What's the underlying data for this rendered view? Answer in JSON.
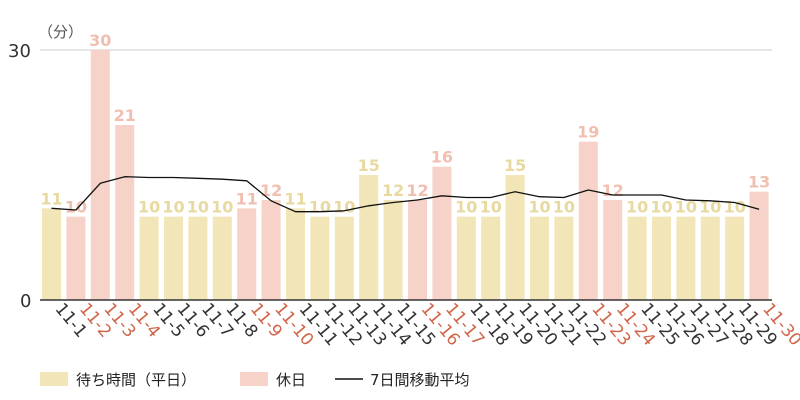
{
  "chart_data": {
    "type": "bar",
    "unit_label": "（分）",
    "y_ticks": [
      "0",
      "30"
    ],
    "ylim": [
      0,
      30
    ],
    "categories": [
      "11-1",
      "11-2",
      "11-3",
      "11-4",
      "11-5",
      "11-6",
      "11-7",
      "11-8",
      "11-9",
      "11-10",
      "11-11",
      "11-12",
      "11-13",
      "11-14",
      "11-15",
      "11-16",
      "11-17",
      "11-18",
      "11-19",
      "11-20",
      "11-21",
      "11-22",
      "11-23",
      "11-24",
      "11-25",
      "11-26",
      "11-27",
      "11-28",
      "11-29",
      "11-30"
    ],
    "values": [
      11,
      10,
      30,
      21,
      10,
      10,
      10,
      10,
      11,
      12,
      11,
      10,
      10,
      15,
      12,
      12,
      16,
      10,
      10,
      15,
      10,
      10,
      19,
      12,
      10,
      10,
      10,
      10,
      10,
      13
    ],
    "holiday": [
      false,
      true,
      true,
      true,
      false,
      false,
      false,
      false,
      true,
      true,
      false,
      false,
      false,
      false,
      false,
      true,
      true,
      false,
      false,
      false,
      false,
      false,
      true,
      true,
      false,
      false,
      false,
      false,
      false,
      true
    ],
    "moving_average": [
      11.0,
      10.8,
      14.0,
      14.8,
      14.7,
      14.7,
      14.6,
      14.5,
      14.3,
      11.9,
      10.6,
      10.6,
      10.7,
      11.3,
      11.7,
      12.0,
      12.5,
      12.3,
      12.3,
      13.0,
      12.4,
      12.3,
      13.2,
      12.6,
      12.6,
      12.6,
      12.0,
      11.9,
      11.7,
      10.9
    ],
    "legend": [
      {
        "label": "待ち時間（平日）",
        "color": "#f2e6b8"
      },
      {
        "label": "休日",
        "color": "#f6d2c8"
      },
      {
        "label": "7日間移動平均",
        "color": "#111111"
      }
    ],
    "colors": {
      "weekday_bar": "#f2e6b8",
      "holiday_bar": "#f6d2c8",
      "weekday_value": "#e8d9a0",
      "holiday_value": "#f0bfb0",
      "weekday_tick": "#333333",
      "holiday_tick": "#d0654a",
      "line": "#111111",
      "grid": "#cccccc"
    }
  }
}
